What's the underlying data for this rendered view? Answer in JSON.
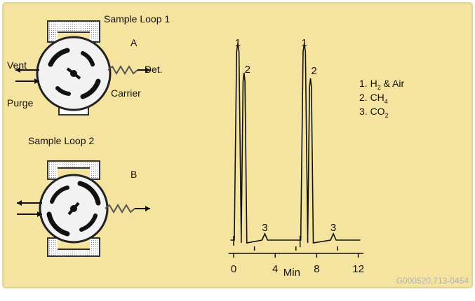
{
  "valve_diagram": {
    "sample_loop_1": "Sample Loop 1",
    "sample_loop_2": "Sample Loop 2",
    "position_a": "A",
    "position_b": "B",
    "vent": "Vent",
    "purge": "Purge",
    "detector": "Det.",
    "carrier": "Carrier"
  },
  "legend": {
    "items": [
      {
        "number": "1.",
        "base": "H",
        "sub": "2",
        "suffix": " & Air"
      },
      {
        "number": "2.",
        "base": "CH",
        "sub": "4",
        "suffix": ""
      },
      {
        "number": "3.",
        "base": "CO",
        "sub": "2",
        "suffix": ""
      }
    ]
  },
  "chromatogram": {
    "xlabel": "Min",
    "xlim": [
      -0.5,
      12.5
    ],
    "ticks_labeled": [
      0,
      4,
      8,
      12
    ],
    "ticks_minor": [
      2,
      6,
      10
    ],
    "peak_labels": [
      {
        "label": "1",
        "x": 0.4
      },
      {
        "label": "2",
        "x": 1.0
      },
      {
        "label": "3",
        "x": 3.0
      },
      {
        "label": "1",
        "x": 6.8
      },
      {
        "label": "2",
        "x": 7.4
      },
      {
        "label": "3",
        "x": 9.6
      }
    ]
  },
  "figure_id": "G000520,713-0454",
  "colors": {
    "panel": "#f4e4a0",
    "panel_border": "#e6d28a",
    "valve_fill": "#f2f2f2",
    "dark": "#111111",
    "loop_fill": "#ffffff",
    "figure_id": "#b2b2b2"
  }
}
